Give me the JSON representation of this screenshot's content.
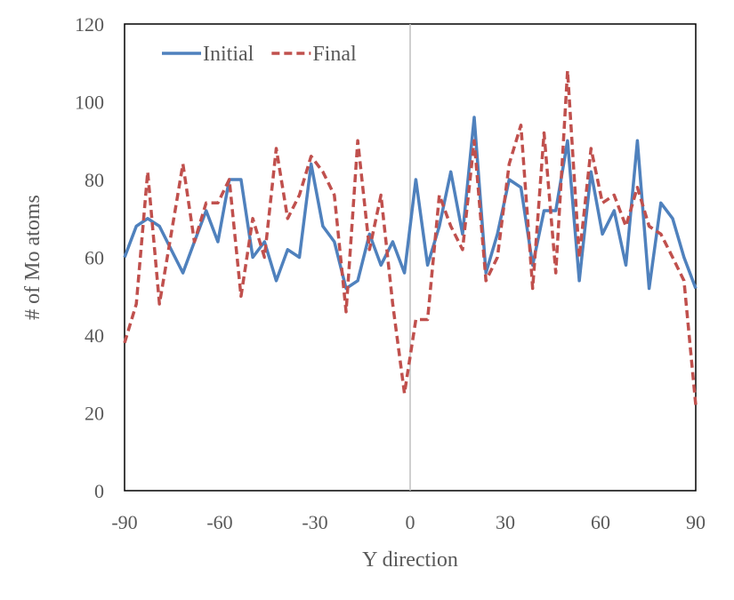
{
  "chart_data": {
    "type": "line",
    "title": "",
    "xlabel": "Y direction",
    "ylabel": "# of Mo atoms",
    "xlim": [
      -90,
      90
    ],
    "ylim": [
      0,
      120
    ],
    "xticks": [
      "-90",
      "-60",
      "-30",
      "0",
      "30",
      "60",
      "90"
    ],
    "yticks": [
      "0",
      "20",
      "40",
      "60",
      "80",
      "100",
      "120"
    ],
    "legend_position": "top-left",
    "grid": false,
    "series": [
      {
        "name": "Initial",
        "color": "#4f81bd",
        "dash": "solid",
        "points": [
          [
            -90,
            60
          ],
          [
            -86.3,
            68
          ],
          [
            -82.7,
            70
          ],
          [
            -79,
            68
          ],
          [
            -75.3,
            62
          ],
          [
            -71.6,
            56
          ],
          [
            -68,
            64
          ],
          [
            -64.3,
            72
          ],
          [
            -60.6,
            64
          ],
          [
            -57,
            80
          ],
          [
            -53.3,
            80
          ],
          [
            -49.6,
            60
          ],
          [
            -45.9,
            64
          ],
          [
            -42.2,
            54
          ],
          [
            -38.6,
            62
          ],
          [
            -34.9,
            60
          ],
          [
            -31.2,
            84
          ],
          [
            -27.5,
            68
          ],
          [
            -23.9,
            64
          ],
          [
            -20.2,
            52
          ],
          [
            -16.5,
            54
          ],
          [
            -12.8,
            66
          ],
          [
            -9.2,
            58
          ],
          [
            -5.5,
            64
          ],
          [
            -1.8,
            56
          ],
          [
            1.8,
            80
          ],
          [
            5.5,
            58
          ],
          [
            9.2,
            68
          ],
          [
            12.8,
            82
          ],
          [
            16.5,
            66
          ],
          [
            20.2,
            96
          ],
          [
            23.9,
            56
          ],
          [
            27.5,
            66
          ],
          [
            31.2,
            80
          ],
          [
            34.9,
            78
          ],
          [
            38.6,
            58
          ],
          [
            42.2,
            72
          ],
          [
            45.9,
            72
          ],
          [
            49.6,
            90
          ],
          [
            53.3,
            54
          ],
          [
            57,
            82
          ],
          [
            60.6,
            66
          ],
          [
            64.3,
            72
          ],
          [
            68,
            58
          ],
          [
            71.6,
            90
          ],
          [
            75.3,
            52
          ],
          [
            79,
            74
          ],
          [
            82.7,
            70
          ],
          [
            86.3,
            60
          ],
          [
            90,
            52
          ]
        ]
      },
      {
        "name": "Final",
        "color": "#c0504d",
        "dash": "dashed",
        "points": [
          [
            -90,
            38
          ],
          [
            -86.3,
            48
          ],
          [
            -82.7,
            82
          ],
          [
            -79,
            48
          ],
          [
            -75.3,
            66
          ],
          [
            -71.6,
            84
          ],
          [
            -68,
            64
          ],
          [
            -64.3,
            74
          ],
          [
            -60.6,
            74
          ],
          [
            -57,
            80
          ],
          [
            -53.3,
            50
          ],
          [
            -49.6,
            70
          ],
          [
            -45.9,
            60
          ],
          [
            -42.2,
            88
          ],
          [
            -38.6,
            70
          ],
          [
            -34.9,
            76
          ],
          [
            -31.2,
            86
          ],
          [
            -27.5,
            82
          ],
          [
            -23.9,
            76
          ],
          [
            -20.2,
            46
          ],
          [
            -16.5,
            90
          ],
          [
            -12.8,
            62
          ],
          [
            -9.2,
            76
          ],
          [
            -5.5,
            48
          ],
          [
            -1.8,
            25
          ],
          [
            1.8,
            44
          ],
          [
            5.5,
            44
          ],
          [
            9.2,
            76
          ],
          [
            12.8,
            68
          ],
          [
            16.5,
            62
          ],
          [
            20.2,
            90
          ],
          [
            23.9,
            54
          ],
          [
            27.5,
            60
          ],
          [
            31.2,
            84
          ],
          [
            34.9,
            94
          ],
          [
            38.6,
            52
          ],
          [
            42.2,
            92
          ],
          [
            45.9,
            56
          ],
          [
            49.6,
            108
          ],
          [
            53.3,
            60
          ],
          [
            57,
            88
          ],
          [
            60.6,
            74
          ],
          [
            64.3,
            76
          ],
          [
            68,
            68
          ],
          [
            71.6,
            78
          ],
          [
            75.3,
            68
          ],
          [
            79,
            66
          ],
          [
            82.7,
            60
          ],
          [
            86.3,
            54
          ],
          [
            90,
            22
          ]
        ]
      }
    ]
  }
}
